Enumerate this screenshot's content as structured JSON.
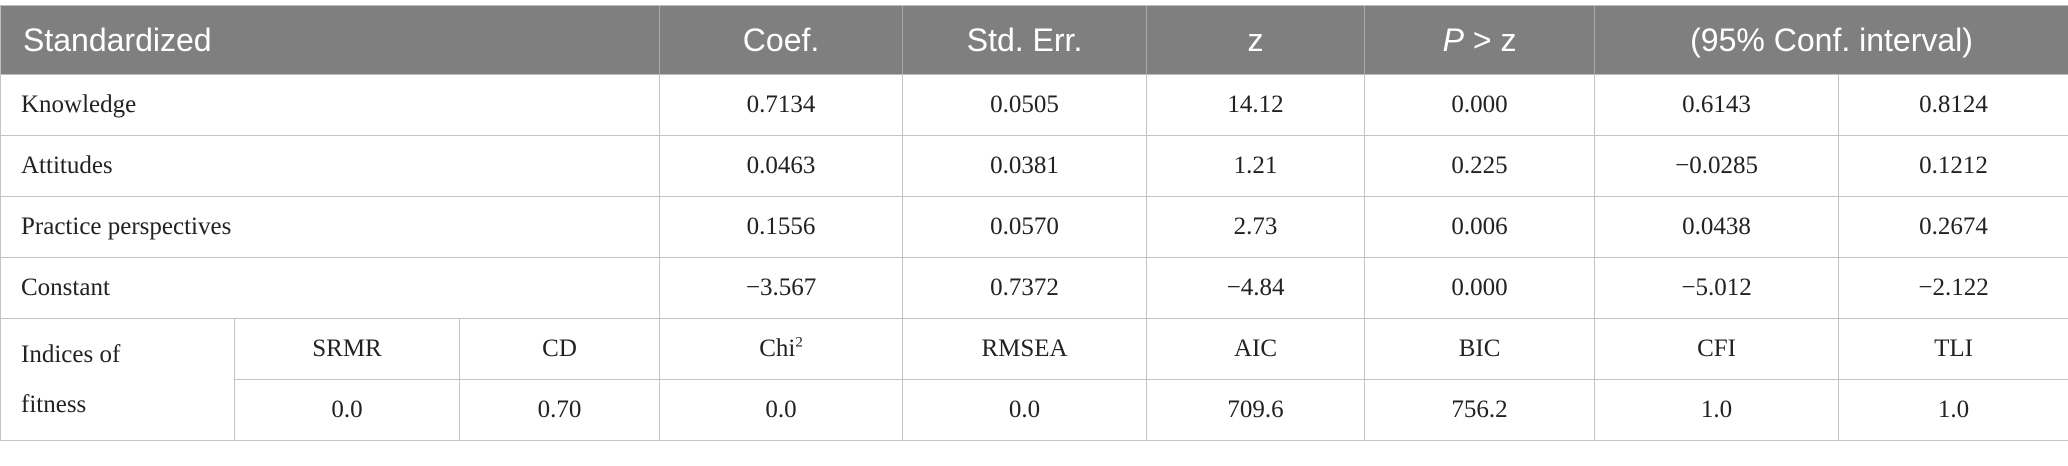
{
  "header": {
    "standardized": "Standardized",
    "coef": "Coef.",
    "std_err": "Std. Err.",
    "z": "z",
    "p_symbol": "P",
    "p_rest": " > z",
    "conf_interval": "(95% Conf. interval)"
  },
  "rows": [
    {
      "label": "Knowledge",
      "coef": "0.7134",
      "std_err": "0.0505",
      "z": "14.12",
      "p": "0.000",
      "ci_low": "0.6143",
      "ci_high": "0.8124"
    },
    {
      "label": "Attitudes",
      "coef": "0.0463",
      "std_err": "0.0381",
      "z": "1.21",
      "p": "0.225",
      "ci_low": "−0.0285",
      "ci_high": "0.1212"
    },
    {
      "label": "Practice perspectives",
      "coef": "0.1556",
      "std_err": "0.0570",
      "z": "2.73",
      "p": "0.006",
      "ci_low": "0.0438",
      "ci_high": "0.2674"
    },
    {
      "label": "Constant",
      "coef": "−3.567",
      "std_err": "0.7372",
      "z": "−4.84",
      "p": "0.000",
      "ci_low": "−5.012",
      "ci_high": "−2.122"
    }
  ],
  "fitness": {
    "label_line1": "Indices of",
    "label_line2": "fitness",
    "names": {
      "srmr": "SRMR",
      "cd": "CD",
      "chi_base": "Chi",
      "chi_sup": "2",
      "rmsea": "RMSEA",
      "aic": "AIC",
      "bic": "BIC",
      "cfi": "CFI",
      "tli": "TLI"
    },
    "values": {
      "srmr": "0.0",
      "cd": "0.70",
      "chi2": "0.0",
      "rmsea": "0.0",
      "aic": "709.6",
      "bic": "756.2",
      "cfi": "1.0",
      "tli": "1.0"
    }
  }
}
